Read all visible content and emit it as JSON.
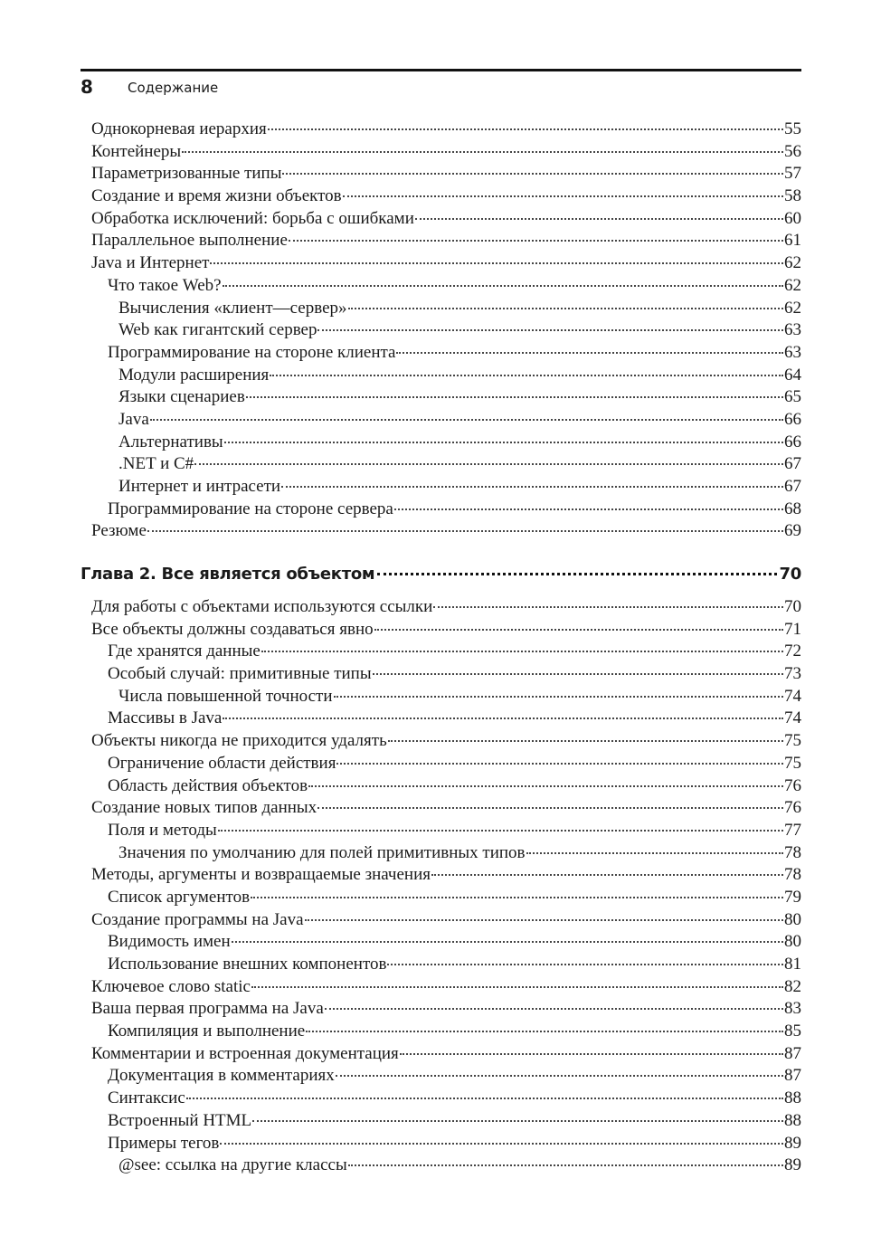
{
  "header": {
    "page_number": "8",
    "running_head": "Содержание"
  },
  "toc_part1": [
    {
      "title": "Однокорневая иерархия",
      "page": "55",
      "level": 0
    },
    {
      "title": "Контейнеры",
      "page": "56",
      "level": 0
    },
    {
      "title": "Параметризованные типы",
      "page": "57",
      "level": 0
    },
    {
      "title": "Создание и время жизни объектов",
      "page": "58",
      "level": 0
    },
    {
      "title": "Обработка исключений: борьба с ошибками",
      "page": "60",
      "level": 0
    },
    {
      "title": "Параллельное выполнение",
      "page": "61",
      "level": 0
    },
    {
      "title": "Java и Интернет",
      "page": "62",
      "level": 0
    },
    {
      "title": "Что такое Web?",
      "page": "62",
      "level": 1
    },
    {
      "title": "Вычисления «клиент—сервер»",
      "page": "62",
      "level": 2
    },
    {
      "title": "Web как гигантский сервер",
      "page": "63",
      "level": 2
    },
    {
      "title": "Программирование на стороне клиента",
      "page": "63",
      "level": 1
    },
    {
      "title": "Модули расширения",
      "page": "64",
      "level": 2
    },
    {
      "title": "Языки сценариев",
      "page": "65",
      "level": 2
    },
    {
      "title": "Java",
      "page": "66",
      "level": 2
    },
    {
      "title": "Альтернативы",
      "page": "66",
      "level": 2
    },
    {
      "title": ".NET и C#",
      "page": "67",
      "level": 2
    },
    {
      "title": "Интернет и интрасети",
      "page": "67",
      "level": 2
    },
    {
      "title": "Программирование на стороне сервера",
      "page": "68",
      "level": 1
    },
    {
      "title": "Резюме",
      "page": "69",
      "level": 0
    }
  ],
  "chapter": {
    "title": "Глава 2. Все является объектом",
    "page": "70"
  },
  "toc_part2": [
    {
      "title": "Для работы с объектами используются ссылки",
      "page": "70",
      "level": 0
    },
    {
      "title": "Все объекты должны создаваться явно",
      "page": "71",
      "level": 0
    },
    {
      "title": "Где хранятся данные",
      "page": "72",
      "level": 1
    },
    {
      "title": "Особый случай: примитивные типы",
      "page": "73",
      "level": 1
    },
    {
      "title": "Числа повышенной точности",
      "page": "74",
      "level": 2
    },
    {
      "title": "Массивы в Java",
      "page": "74",
      "level": 1
    },
    {
      "title": "Объекты никогда не приходится удалять",
      "page": "75",
      "level": 0
    },
    {
      "title": "Ограничение области действия",
      "page": "75",
      "level": 1
    },
    {
      "title": "Область действия объектов",
      "page": "76",
      "level": 1
    },
    {
      "title": "Создание новых типов данных",
      "page": "76",
      "level": 0
    },
    {
      "title": "Поля и методы",
      "page": "77",
      "level": 1
    },
    {
      "title": "Значения по умолчанию для полей примитивных типов",
      "page": "78",
      "level": 2
    },
    {
      "title": "Методы, аргументы и возвращаемые значения",
      "page": "78",
      "level": 0
    },
    {
      "title": "Список аргументов",
      "page": "79",
      "level": 1
    },
    {
      "title": "Создание программы на Java",
      "page": "80",
      "level": 0
    },
    {
      "title": "Видимость имен",
      "page": "80",
      "level": 1
    },
    {
      "title": "Использование внешних компонентов",
      "page": "81",
      "level": 1
    },
    {
      "title": "Ключевое слово static",
      "page": "82",
      "level": 0
    },
    {
      "title": "Ваша первая программа на Java",
      "page": "83",
      "level": 0
    },
    {
      "title": "Компиляция и выполнение",
      "page": "85",
      "level": 1
    },
    {
      "title": "Комментарии и встроенная документация",
      "page": "87",
      "level": 0
    },
    {
      "title": "Документация в комментариях",
      "page": "87",
      "level": 1
    },
    {
      "title": "Синтаксис",
      "page": "88",
      "level": 1
    },
    {
      "title": "Встроенный HTML",
      "page": "88",
      "level": 1
    },
    {
      "title": "Примеры тегов",
      "page": "89",
      "level": 1
    },
    {
      "title": "@see: ссылка на другие классы",
      "page": "89",
      "level": 2
    }
  ]
}
